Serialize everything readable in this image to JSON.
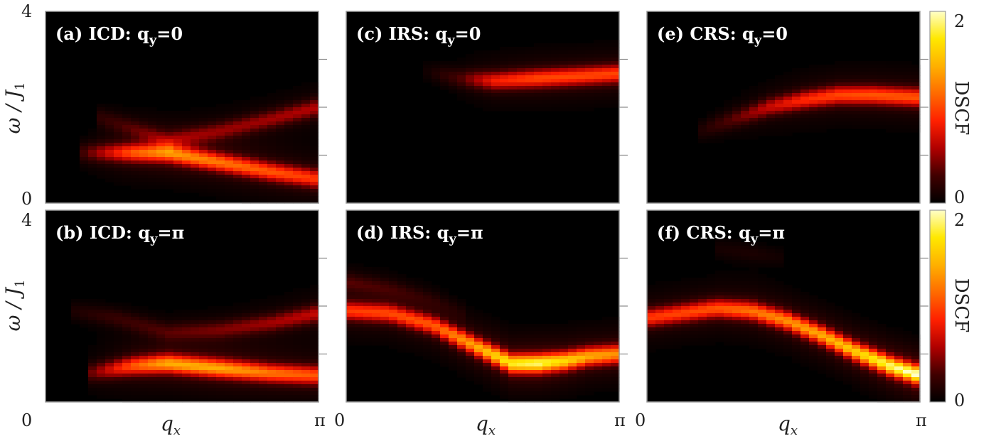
{
  "figure": {
    "colorbar_label": "DSCF",
    "colorbar_ticks": [
      "0",
      "2"
    ],
    "xlabel": "q",
    "xlabel_sub": "x",
    "xtick_left": "0",
    "xtick_right": "π",
    "ylabel_top": "ω / J",
    "ylabel_sub": "1",
    "ytick_top": "4",
    "ytick_bottom": "0"
  },
  "colors": {
    "background": "#ffffff",
    "colormap": [
      "#000000",
      "#400000",
      "#b00000",
      "#ff2000",
      "#ff6a00",
      "#ffb000",
      "#ffe800",
      "#ffffc8"
    ]
  },
  "chart_data": [
    {
      "type": "heatmap",
      "panel": "a",
      "title": "(a) ICD: q",
      "title_sub": "y",
      "title_tail": "=0",
      "xlim": [
        0,
        3.1416
      ],
      "ylim": [
        0,
        4
      ],
      "zlim": [
        0,
        2
      ],
      "bands": [
        {
          "x": [
            0.4,
            1.0,
            1.4,
            2.0,
            2.6,
            3.1416
          ],
          "y": [
            1.05,
            1.05,
            1.05,
            0.85,
            0.65,
            0.5
          ],
          "intensity": [
            0.2,
            0.9,
            1.1,
            1.0,
            0.9,
            0.8
          ]
        },
        {
          "x": [
            0.6,
            1.0,
            1.4,
            2.0,
            2.6,
            3.1416
          ],
          "y": [
            1.8,
            1.55,
            1.3,
            1.5,
            1.75,
            2.0
          ],
          "intensity": [
            0.15,
            0.25,
            0.35,
            0.4,
            0.45,
            0.5
          ]
        }
      ]
    },
    {
      "type": "heatmap",
      "panel": "b",
      "title": "(b) ICD: q",
      "title_sub": "y",
      "title_tail": "=π",
      "xlim": [
        0,
        3.1416
      ],
      "ylim": [
        0,
        4
      ],
      "zlim": [
        0,
        2
      ],
      "bands": [
        {
          "x": [
            0.5,
            1.0,
            1.4,
            2.0,
            2.6,
            3.1416
          ],
          "y": [
            0.6,
            0.75,
            0.8,
            0.7,
            0.6,
            0.55
          ],
          "intensity": [
            0.3,
            0.9,
            1.2,
            1.2,
            1.0,
            0.9
          ]
        },
        {
          "x": [
            0.3,
            0.8,
            1.4,
            2.0,
            2.6,
            3.1416
          ],
          "y": [
            1.9,
            1.75,
            1.45,
            1.5,
            1.65,
            1.85
          ],
          "intensity": [
            0.1,
            0.2,
            0.25,
            0.35,
            0.45,
            0.55
          ]
        }
      ]
    },
    {
      "type": "heatmap",
      "panel": "c",
      "title": "(c) IRS: q",
      "title_sub": "y",
      "title_tail": "=0",
      "xlim": [
        0,
        3.1416
      ],
      "ylim": [
        0,
        4
      ],
      "zlim": [
        0,
        2
      ],
      "bands": [
        {
          "x": [
            0.9,
            1.3,
            1.7,
            2.2,
            2.7,
            3.1416
          ],
          "y": [
            2.75,
            2.6,
            2.55,
            2.6,
            2.65,
            2.7
          ],
          "intensity": [
            0.05,
            0.25,
            0.7,
            0.85,
            0.85,
            0.85
          ]
        }
      ]
    },
    {
      "type": "heatmap",
      "panel": "d",
      "title": "(d) IRS: q",
      "title_sub": "y",
      "title_tail": "=π",
      "xlim": [
        0,
        3.1416
      ],
      "ylim": [
        0,
        4
      ],
      "zlim": [
        0,
        2
      ],
      "bands": [
        {
          "x": [
            0,
            0.5,
            1.0,
            1.5,
            1.9,
            2.2,
            2.5,
            2.8,
            3.1416
          ],
          "y": [
            1.9,
            1.85,
            1.6,
            1.15,
            0.8,
            0.8,
            0.85,
            0.95,
            1.0
          ],
          "intensity": [
            0.8,
            0.85,
            0.9,
            1.2,
            1.5,
            1.6,
            1.4,
            1.2,
            1.1
          ]
        },
        {
          "x": [
            0,
            0.5,
            1.0,
            1.4
          ],
          "y": [
            2.5,
            2.35,
            2.1,
            1.8
          ],
          "intensity": [
            0.25,
            0.2,
            0.12,
            0.05
          ]
        }
      ]
    },
    {
      "type": "heatmap",
      "panel": "e",
      "title": "(e) CRS: q",
      "title_sub": "y",
      "title_tail": "=0",
      "xlim": [
        0,
        3.1416
      ],
      "ylim": [
        0,
        4
      ],
      "zlim": [
        0,
        2
      ],
      "bands": [
        {
          "x": [
            0.6,
            1.0,
            1.4,
            1.8,
            2.2,
            2.6,
            3.1416
          ],
          "y": [
            1.5,
            1.75,
            2.0,
            2.15,
            2.25,
            2.25,
            2.2
          ],
          "intensity": [
            0.1,
            0.3,
            0.55,
            0.75,
            0.85,
            0.9,
            0.9
          ]
        }
      ]
    },
    {
      "type": "heatmap",
      "panel": "f",
      "title": "(f) CRS: q",
      "title_sub": "y",
      "title_tail": "=π",
      "xlim": [
        0,
        3.1416
      ],
      "ylim": [
        0,
        4
      ],
      "zlim": [
        0,
        2
      ],
      "bands": [
        {
          "x": [
            0,
            0.4,
            0.8,
            1.2,
            1.6,
            2.0,
            2.4,
            2.8,
            3.1416
          ],
          "y": [
            1.75,
            1.85,
            1.95,
            1.9,
            1.7,
            1.4,
            1.05,
            0.75,
            0.55
          ],
          "intensity": [
            0.8,
            0.85,
            0.9,
            1.0,
            1.1,
            1.2,
            1.35,
            1.6,
            1.75
          ]
        },
        {
          "x": [
            0.8,
            1.2,
            1.6
          ],
          "y": [
            3.2,
            3.1,
            3.0
          ],
          "intensity": [
            0.08,
            0.1,
            0.06
          ]
        }
      ]
    }
  ]
}
